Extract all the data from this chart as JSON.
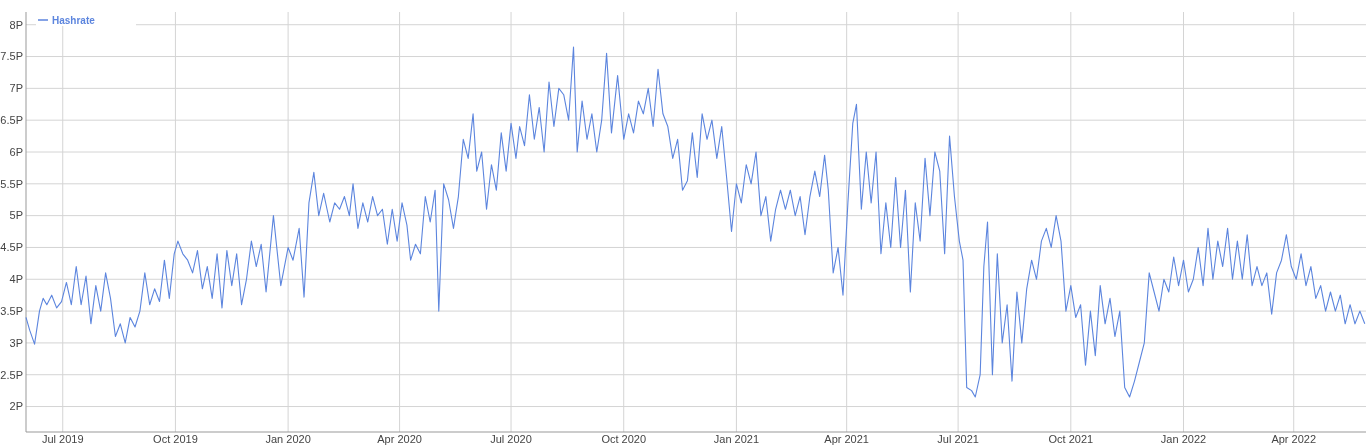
{
  "chart_data": {
    "type": "line",
    "legend": "top left",
    "grid": true,
    "xlim": [
      "2019-06-01",
      "2022-05-30"
    ],
    "xticks": [
      {
        "value": "2019-07-01",
        "label": "Jul 2019"
      },
      {
        "value": "2019-10-01",
        "label": "Oct 2019"
      },
      {
        "value": "2020-01-01",
        "label": "Jan 2020"
      },
      {
        "value": "2020-04-01",
        "label": "Apr 2020"
      },
      {
        "value": "2020-07-01",
        "label": "Jul 2020"
      },
      {
        "value": "2020-10-01",
        "label": "Oct 2020"
      },
      {
        "value": "2021-01-01",
        "label": "Jan 2021"
      },
      {
        "value": "2021-04-01",
        "label": "Apr 2021"
      },
      {
        "value": "2021-07-01",
        "label": "Jul 2021"
      },
      {
        "value": "2021-10-01",
        "label": "Oct 2021"
      },
      {
        "value": "2022-01-01",
        "label": "Jan 2022"
      },
      {
        "value": "2022-04-01",
        "label": "Apr 2022"
      }
    ],
    "ylim": [
      1.6,
      8.2
    ],
    "yticks": [
      {
        "value": 2,
        "label": "2P"
      },
      {
        "value": 2.5,
        "label": "2.5P"
      },
      {
        "value": 3,
        "label": "3P"
      },
      {
        "value": 3.5,
        "label": "3.5P"
      },
      {
        "value": 4,
        "label": "4P"
      },
      {
        "value": 4.5,
        "label": "4.5P"
      },
      {
        "value": 5,
        "label": "5P"
      },
      {
        "value": 5.5,
        "label": "5.5P"
      },
      {
        "value": 6,
        "label": "6P"
      },
      {
        "value": 6.5,
        "label": "6.5P"
      },
      {
        "value": 7,
        "label": "7P"
      },
      {
        "value": 7.5,
        "label": "7.5P"
      },
      {
        "value": 8,
        "label": "8P"
      }
    ],
    "x": [
      "2019-06-01",
      "2019-06-04",
      "2019-06-08",
      "2019-06-12",
      "2019-06-15",
      "2019-06-18",
      "2019-06-22",
      "2019-06-26",
      "2019-06-30",
      "2019-07-04",
      "2019-07-08",
      "2019-07-12",
      "2019-07-16",
      "2019-07-20",
      "2019-07-24",
      "2019-07-28",
      "2019-08-01",
      "2019-08-05",
      "2019-08-09",
      "2019-08-13",
      "2019-08-17",
      "2019-08-21",
      "2019-08-25",
      "2019-08-29",
      "2019-09-02",
      "2019-09-06",
      "2019-09-10",
      "2019-09-14",
      "2019-09-18",
      "2019-09-22",
      "2019-09-26",
      "2019-09-30",
      "2019-10-03",
      "2019-10-07",
      "2019-10-11",
      "2019-10-15",
      "2019-10-19",
      "2019-10-23",
      "2019-10-27",
      "2019-10-31",
      "2019-11-04",
      "2019-11-08",
      "2019-11-12",
      "2019-11-16",
      "2019-11-20",
      "2019-11-24",
      "2019-11-28",
      "2019-12-02",
      "2019-12-06",
      "2019-12-10",
      "2019-12-14",
      "2019-12-20",
      "2019-12-26",
      "2020-01-01",
      "2020-01-05",
      "2020-01-10",
      "2020-01-14",
      "2020-01-18",
      "2020-01-22",
      "2020-01-26",
      "2020-01-30",
      "2020-02-04",
      "2020-02-08",
      "2020-02-12",
      "2020-02-16",
      "2020-02-20",
      "2020-02-23",
      "2020-02-27",
      "2020-03-02",
      "2020-03-06",
      "2020-03-10",
      "2020-03-14",
      "2020-03-18",
      "2020-03-22",
      "2020-03-26",
      "2020-03-30",
      "2020-04-03",
      "2020-04-07",
      "2020-04-10",
      "2020-04-14",
      "2020-04-18",
      "2020-04-22",
      "2020-04-26",
      "2020-04-30",
      "2020-05-03",
      "2020-05-07",
      "2020-05-11",
      "2020-05-15",
      "2020-05-19",
      "2020-05-23",
      "2020-05-27",
      "2020-05-31",
      "2020-06-03",
      "2020-06-07",
      "2020-06-11",
      "2020-06-15",
      "2020-06-19",
      "2020-06-23",
      "2020-06-27",
      "2020-07-01",
      "2020-07-05",
      "2020-07-08",
      "2020-07-12",
      "2020-07-16",
      "2020-07-20",
      "2020-07-24",
      "2020-07-28",
      "2020-08-01",
      "2020-08-05",
      "2020-08-09",
      "2020-08-13",
      "2020-08-17",
      "2020-08-21",
      "2020-08-24",
      "2020-08-28",
      "2020-09-01",
      "2020-09-05",
      "2020-09-09",
      "2020-09-13",
      "2020-09-17",
      "2020-09-21",
      "2020-09-26",
      "2020-10-01",
      "2020-10-05",
      "2020-10-09",
      "2020-10-13",
      "2020-10-17",
      "2020-10-21",
      "2020-10-25",
      "2020-10-29",
      "2020-11-02",
      "2020-11-06",
      "2020-11-10",
      "2020-11-14",
      "2020-11-18",
      "2020-11-22",
      "2020-11-26",
      "2020-11-30",
      "2020-12-04",
      "2020-12-08",
      "2020-12-12",
      "2020-12-16",
      "2020-12-20",
      "2020-12-24",
      "2020-12-28",
      "2021-01-01",
      "2021-01-05",
      "2021-01-09",
      "2021-01-13",
      "2021-01-17",
      "2021-01-21",
      "2021-01-25",
      "2021-01-29",
      "2021-02-02",
      "2021-02-06",
      "2021-02-10",
      "2021-02-14",
      "2021-02-18",
      "2021-02-22",
      "2021-02-26",
      "2021-03-02",
      "2021-03-06",
      "2021-03-10",
      "2021-03-14",
      "2021-03-17",
      "2021-03-21",
      "2021-03-25",
      "2021-03-29",
      "2021-04-02",
      "2021-04-06",
      "2021-04-09",
      "2021-04-13",
      "2021-04-17",
      "2021-04-21",
      "2021-04-25",
      "2021-04-29",
      "2021-05-03",
      "2021-05-07",
      "2021-05-11",
      "2021-05-15",
      "2021-05-19",
      "2021-05-23",
      "2021-05-27",
      "2021-05-31",
      "2021-06-04",
      "2021-06-08",
      "2021-06-12",
      "2021-06-16",
      "2021-06-20",
      "2021-06-24",
      "2021-06-28",
      "2021-07-02",
      "2021-07-05",
      "2021-07-08",
      "2021-07-12",
      "2021-07-15",
      "2021-07-19",
      "2021-07-22",
      "2021-07-25",
      "2021-07-29",
      "2021-08-02",
      "2021-08-06",
      "2021-08-10",
      "2021-08-14",
      "2021-08-18",
      "2021-08-22",
      "2021-08-26",
      "2021-08-30",
      "2021-09-03",
      "2021-09-07",
      "2021-09-11",
      "2021-09-15",
      "2021-09-19",
      "2021-09-23",
      "2021-09-27",
      "2021-10-01",
      "2021-10-05",
      "2021-10-09",
      "2021-10-13",
      "2021-10-17",
      "2021-10-21",
      "2021-10-25",
      "2021-10-29",
      "2021-11-02",
      "2021-11-06",
      "2021-11-10",
      "2021-11-14",
      "2021-11-18",
      "2021-11-22",
      "2021-11-26",
      "2021-11-30",
      "2021-12-04",
      "2021-12-08",
      "2021-12-12",
      "2021-12-16",
      "2021-12-20",
      "2021-12-24",
      "2021-12-28",
      "2022-01-01",
      "2022-01-05",
      "2022-01-09",
      "2022-01-13",
      "2022-01-17",
      "2022-01-21",
      "2022-01-25",
      "2022-01-29",
      "2022-02-02",
      "2022-02-06",
      "2022-02-10",
      "2022-02-14",
      "2022-02-18",
      "2022-02-22",
      "2022-02-26",
      "2022-03-02",
      "2022-03-06",
      "2022-03-10",
      "2022-03-14",
      "2022-03-18",
      "2022-03-22",
      "2022-03-26",
      "2022-03-30",
      "2022-04-03",
      "2022-04-07",
      "2022-04-11",
      "2022-04-15",
      "2022-04-19",
      "2022-04-23",
      "2022-04-27",
      "2022-05-01",
      "2022-05-05",
      "2022-05-09",
      "2022-05-13",
      "2022-05-17",
      "2022-05-21",
      "2022-05-25",
      "2022-05-29"
    ],
    "series": [
      {
        "name": "Hashrate",
        "color": "#5c85de",
        "values": [
          3.4,
          3.2,
          2.98,
          3.5,
          3.7,
          3.6,
          3.75,
          3.55,
          3.65,
          3.95,
          3.6,
          4.2,
          3.6,
          4.05,
          3.3,
          3.9,
          3.5,
          4.1,
          3.7,
          3.1,
          3.3,
          3.0,
          3.4,
          3.25,
          3.5,
          4.1,
          3.6,
          3.85,
          3.65,
          4.3,
          3.7,
          4.4,
          4.6,
          4.4,
          4.3,
          4.1,
          4.45,
          3.85,
          4.2,
          3.7,
          4.4,
          3.55,
          4.45,
          3.9,
          4.4,
          3.6,
          4.0,
          4.6,
          4.2,
          4.55,
          3.8,
          5.0,
          3.9,
          4.5,
          4.3,
          4.8,
          3.72,
          5.2,
          5.68,
          5.0,
          5.35,
          4.9,
          5.2,
          5.1,
          5.3,
          5.0,
          5.5,
          4.8,
          5.2,
          4.9,
          5.3,
          5.0,
          5.1,
          4.55,
          5.1,
          4.6,
          5.2,
          4.85,
          4.3,
          4.55,
          4.4,
          5.3,
          4.9,
          5.4,
          3.5,
          5.5,
          5.25,
          4.8,
          5.3,
          6.2,
          5.9,
          6.6,
          5.7,
          6.0,
          5.1,
          5.8,
          5.4,
          6.3,
          5.7,
          6.45,
          5.9,
          6.4,
          6.1,
          6.9,
          6.2,
          6.7,
          6.0,
          7.1,
          6.4,
          7.0,
          6.9,
          6.5,
          7.65,
          6.0,
          6.8,
          6.2,
          6.6,
          6.0,
          6.5,
          7.55,
          6.3,
          7.2,
          6.2,
          6.6,
          6.3,
          6.8,
          6.6,
          7.0,
          6.4,
          7.3,
          6.6,
          6.4,
          5.9,
          6.2,
          5.4,
          5.55,
          6.3,
          5.6,
          6.6,
          6.2,
          6.5,
          5.9,
          6.4,
          5.6,
          4.75,
          5.5,
          5.2,
          5.8,
          5.5,
          6.0,
          5.0,
          5.3,
          4.6,
          5.1,
          5.4,
          5.1,
          5.4,
          5.0,
          5.3,
          4.7,
          5.3,
          5.7,
          5.3,
          5.95,
          5.4,
          4.1,
          4.5,
          3.75,
          5.2,
          6.45,
          6.75,
          5.1,
          6.0,
          5.2,
          6.0,
          4.4,
          5.2,
          4.5,
          5.6,
          4.5,
          5.4,
          3.8,
          5.2,
          4.6,
          5.9,
          5.0,
          6.0,
          5.7,
          4.4,
          6.25,
          5.3,
          4.6,
          4.3,
          2.3,
          2.25,
          2.15,
          2.5,
          4.2,
          4.9,
          2.5,
          4.4,
          3.0,
          3.6,
          2.4,
          3.8,
          3.0,
          3.85,
          4.3,
          4.0,
          4.6,
          4.8,
          4.5,
          5.0,
          4.6,
          3.5,
          3.9,
          3.4,
          3.6,
          2.65,
          3.5,
          2.8,
          3.9,
          3.3,
          3.7,
          3.1,
          3.5,
          2.3,
          2.15,
          2.4,
          2.7,
          3.0,
          4.1,
          3.8,
          3.5,
          4.0,
          3.8,
          4.35,
          3.9,
          4.3,
          3.8,
          4.0,
          4.5,
          3.9,
          4.8,
          4.0,
          4.6,
          4.2,
          4.8,
          4.0,
          4.6,
          4.0,
          4.7,
          3.9,
          4.2,
          3.9,
          4.1,
          3.45,
          4.1,
          4.3,
          4.7,
          4.2,
          4.0,
          4.4,
          3.9,
          4.2,
          3.7,
          3.9,
          3.5,
          3.8,
          3.5,
          3.75,
          3.3,
          3.6,
          3.3,
          3.5,
          3.3
        ]
      }
    ]
  }
}
